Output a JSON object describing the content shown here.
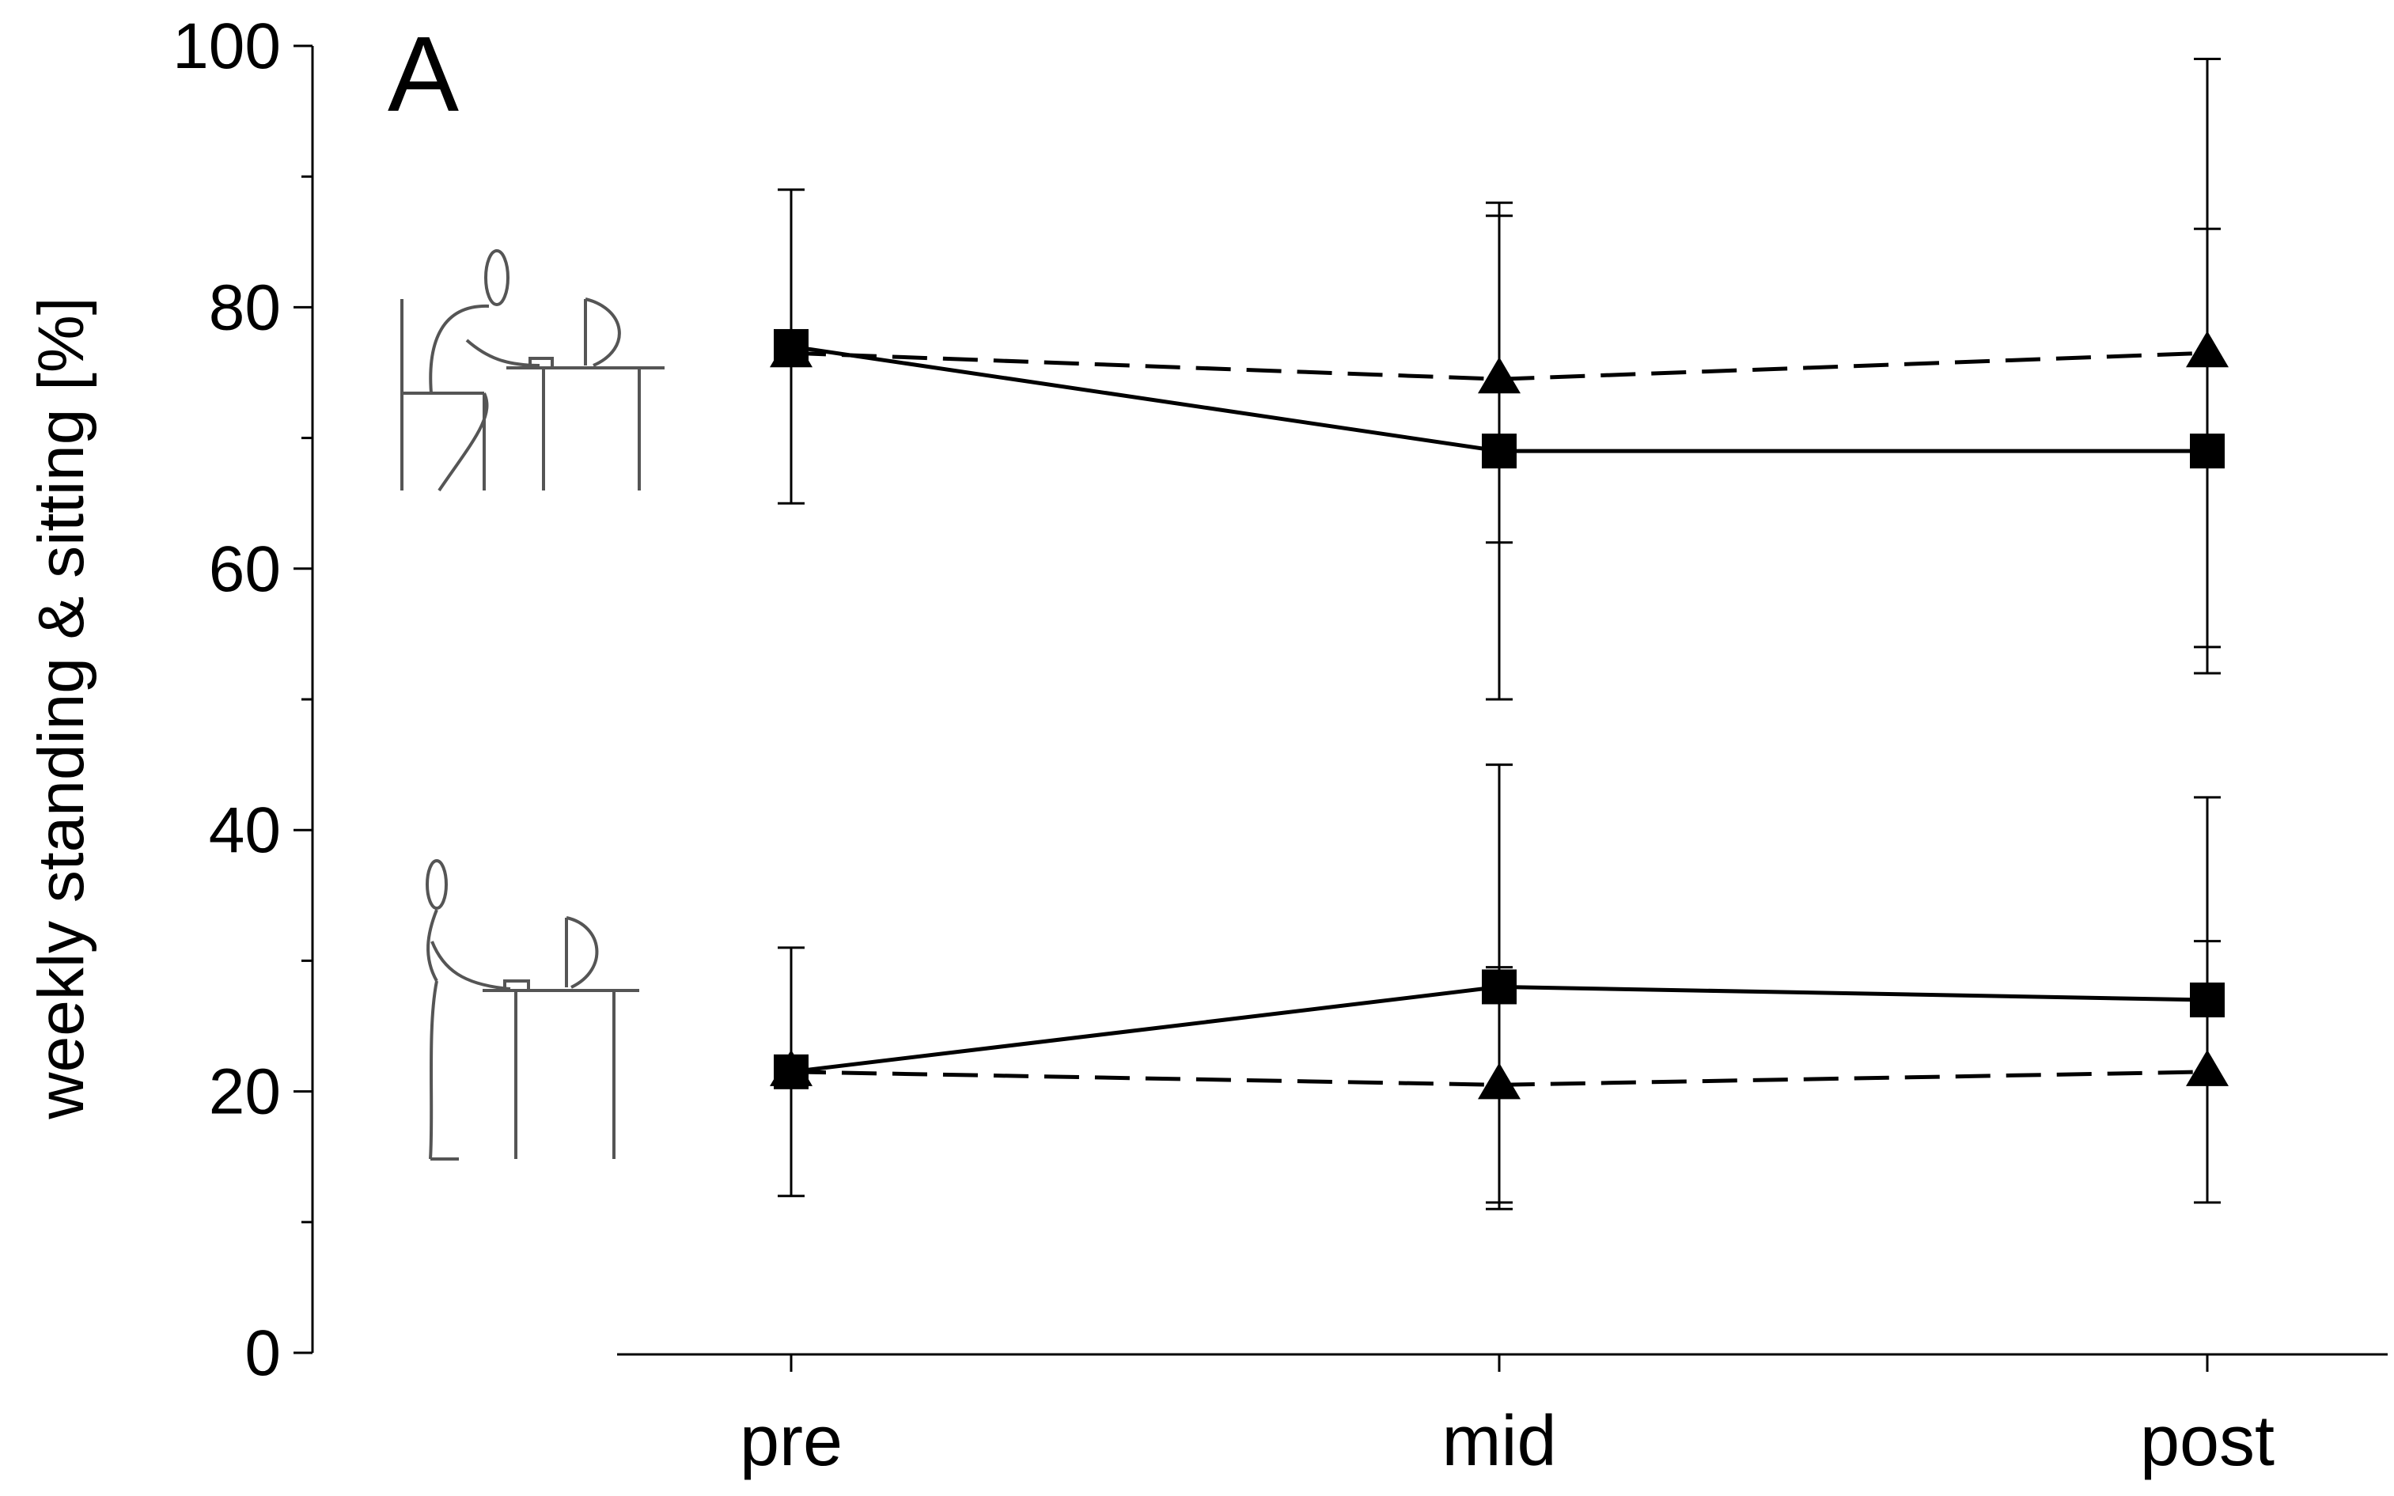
{
  "chart_data": {
    "type": "line",
    "panel_label": "A",
    "ylabel": "weekly standing & sitting [%]",
    "ylim": [
      0,
      100
    ],
    "yticks": [
      0,
      20,
      40,
      60,
      80,
      100
    ],
    "yticks_labels": [
      "0",
      "20",
      "40",
      "60",
      "80",
      "100"
    ],
    "categories": [
      "pre",
      "mid",
      "post"
    ],
    "grid": false,
    "legend": "none",
    "icons": [
      "sitting-at-desk-icon",
      "standing-at-desk-icon"
    ],
    "series": [
      {
        "marker": "square",
        "line": "solid",
        "values": [
          77,
          69,
          69
        ],
        "error": [
          12,
          19,
          17
        ]
      },
      {
        "marker": "triangle",
        "line": "dashed",
        "values": [
          76.5,
          74.5,
          76.5
        ],
        "error": [
          null,
          12.5,
          22.5
        ]
      },
      {
        "marker": "square",
        "line": "solid",
        "values": [
          21.5,
          28,
          27
        ],
        "error": [
          9.5,
          17,
          15.5
        ]
      },
      {
        "marker": "triangle",
        "line": "dashed",
        "values": [
          21.5,
          20.5,
          21.5
        ],
        "error": [
          null,
          9,
          10
        ]
      }
    ],
    "colors": {
      "ink": "#000000",
      "icon": "#555555"
    }
  }
}
